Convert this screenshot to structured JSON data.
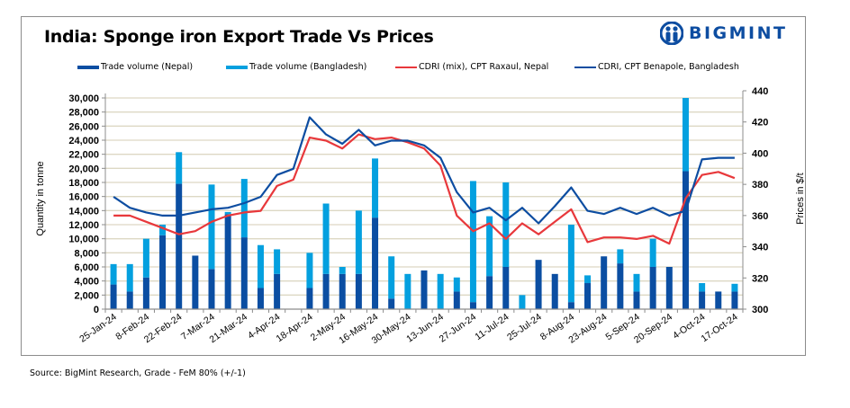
{
  "title": "India: Sponge iron Export Trade Vs Prices",
  "logo": {
    "text": "BIGMINT",
    "icon": "bigmint-people-icon",
    "color": "#0d4da1"
  },
  "source": "Source: BigMint Research, Grade - FeM 80% (+/-1)",
  "colors": {
    "nepal_bar": "#0b4ea2",
    "bangladesh_bar": "#04a0df",
    "raxaul_line": "#e8383b",
    "benapole_line": "#0d4da1",
    "grid": "#ddd8c4",
    "axis": "#8c8c8c"
  },
  "chart_data": {
    "type": "bar",
    "title": "India: Sponge iron Export Trade Vs Prices",
    "xlabel": "",
    "ylabel": "Quantity in tonne",
    "y2label": "Prices in $/t",
    "ylim": [
      0,
      30000
    ],
    "y2lim": [
      300,
      440
    ],
    "yticks": [
      "0",
      "2,000",
      "4,000",
      "6,000",
      "8,000",
      "10,000",
      "12,000",
      "14,000",
      "16,000",
      "18,000",
      "20,000",
      "22,000",
      "24,000",
      "26,000",
      "28,000",
      "30,000"
    ],
    "y2ticks": [
      "300",
      "320",
      "340",
      "360",
      "380",
      "400",
      "420",
      "440"
    ],
    "grid": true,
    "legend_position": "top",
    "stacked": true,
    "tick_labels": [
      "25-Jan-24",
      "8-Feb-24",
      "22-Feb-24",
      "7-Mar-24",
      "21-Mar-24",
      "4-Apr-24",
      "18-Apr-24",
      "2-May-24",
      "16-May-24",
      "30-May-24",
      "13-Jun-24",
      "27-Jun-24",
      "11-Jul-24",
      "25-Jul-24",
      "8-Aug-24",
      "23-Aug-24",
      "5-Sep-24",
      "20-Sep-24",
      "4-Oct-24",
      "17-Oct-24"
    ],
    "tick_label_every": 2,
    "category_count": 39,
    "series": [
      {
        "name": "Trade volume (Nepal)",
        "kind": "bar",
        "axis": "left",
        "values": [
          3500,
          2500,
          4500,
          10500,
          17800,
          7600,
          5700,
          13500,
          10200,
          3000,
          5000,
          0,
          3000,
          5000,
          5000,
          5000,
          13000,
          1500,
          0,
          5500,
          0,
          2500,
          1000,
          4700,
          6000,
          0,
          7000,
          5000,
          1000,
          3700,
          7500,
          6500,
          2500,
          6000,
          6000,
          19600,
          2500,
          2500,
          2500
        ]
      },
      {
        "name": "Trade volume (Bangladesh)",
        "kind": "bar",
        "axis": "left",
        "values": [
          2900,
          3900,
          5500,
          1500,
          4500,
          0,
          12000,
          300,
          8300,
          6100,
          3500,
          0,
          5000,
          10000,
          1000,
          9000,
          8400,
          6000,
          5000,
          0,
          5000,
          2000,
          17200,
          8500,
          12000,
          2000,
          0,
          0,
          11000,
          1100,
          0,
          2000,
          2500,
          4000,
          0,
          10400,
          1200,
          0,
          1100
        ]
      },
      {
        "name": "CDRI (mix), CPT Raxaul, Nepal",
        "kind": "line",
        "axis": "right",
        "values": [
          360,
          360,
          356,
          352,
          348,
          350,
          356,
          360,
          362,
          363,
          379,
          383,
          410,
          408,
          403,
          412,
          409,
          410,
          407,
          403,
          392,
          360,
          350,
          355,
          345,
          355,
          348,
          356,
          364,
          343,
          346,
          346,
          345,
          347,
          342,
          371,
          386,
          388,
          384
        ]
      },
      {
        "name": "CDRI, CPT Benapole, Bangladesh",
        "kind": "line",
        "axis": "right",
        "values": [
          372,
          365,
          362,
          360,
          360,
          362,
          364,
          365,
          368,
          372,
          386,
          390,
          423,
          412,
          406,
          415,
          405,
          408,
          408,
          405,
          397,
          375,
          362,
          365,
          357,
          365,
          355,
          366,
          378,
          363,
          361,
          365,
          361,
          365,
          360,
          363,
          396,
          397,
          397
        ]
      }
    ]
  },
  "legend": [
    {
      "label": "Trade volume (Nepal)",
      "type": "bar"
    },
    {
      "label": "Trade volume (Bangladesh)",
      "type": "bar"
    },
    {
      "label": "CDRI (mix), CPT Raxaul, Nepal",
      "type": "line"
    },
    {
      "label": "CDRI, CPT Benapole, Bangladesh",
      "type": "line"
    }
  ]
}
